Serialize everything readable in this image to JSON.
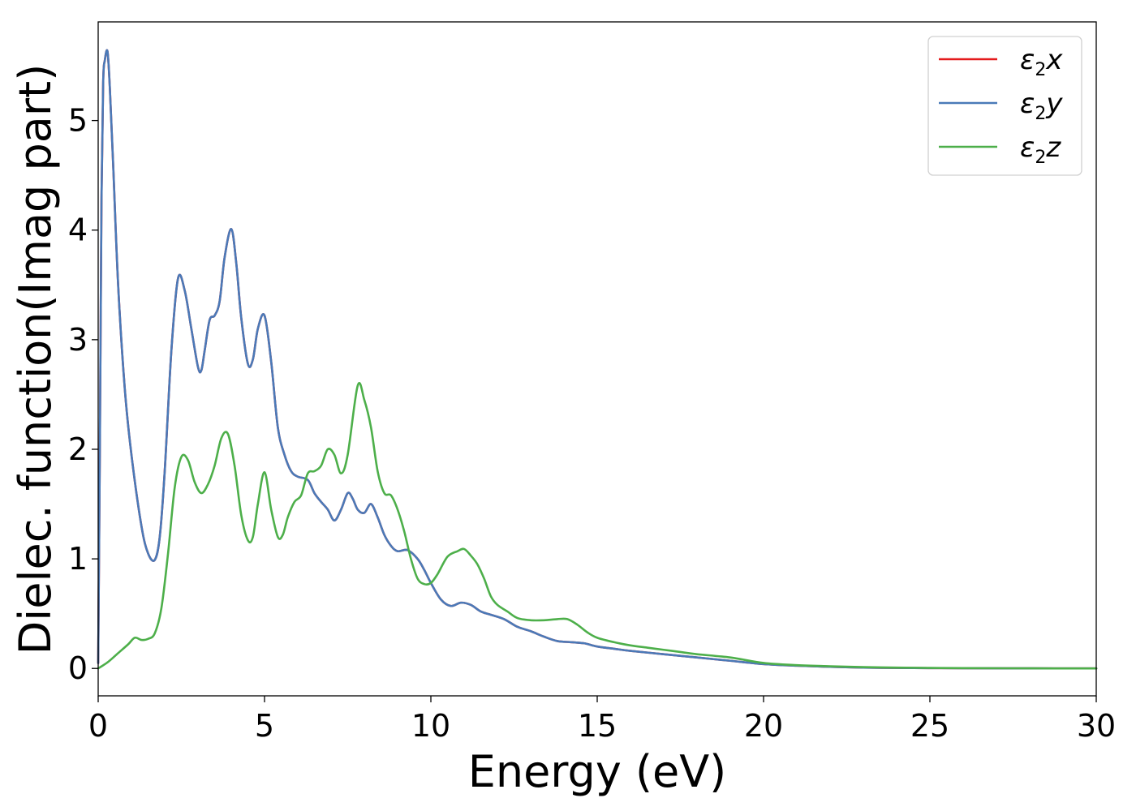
{
  "chart_data": {
    "type": "line",
    "title": "",
    "xlabel": "Energy (eV)",
    "ylabel": "Dielec. function(Imag part)",
    "xlim": [
      0,
      30
    ],
    "ylim": [
      -0.25,
      5.9
    ],
    "xticks": [
      0,
      5,
      10,
      15,
      20,
      25,
      30
    ],
    "yticks": [
      0,
      1,
      2,
      3,
      4,
      5
    ],
    "grid": false,
    "legend_position": "top-right",
    "series": [
      {
        "name": "ε2x",
        "symbol": "ε",
        "sub": "2",
        "axis": "x",
        "color": "#e41a1c",
        "x": [
          0,
          0.05,
          0.1,
          0.15,
          0.2,
          0.28,
          0.35,
          0.45,
          0.6,
          0.8,
          1.0,
          1.3,
          1.5,
          1.7,
          1.85,
          2.0,
          2.2,
          2.4,
          2.6,
          2.8,
          3.0,
          3.1,
          3.2,
          3.35,
          3.5,
          3.65,
          3.8,
          4.0,
          4.15,
          4.3,
          4.5,
          4.65,
          4.8,
          5.0,
          5.2,
          5.4,
          5.6,
          5.8,
          6.0,
          6.3,
          6.5,
          6.7,
          6.9,
          7.1,
          7.3,
          7.5,
          7.65,
          7.8,
          8.0,
          8.2,
          8.4,
          8.6,
          8.8,
          9.0,
          9.3,
          9.6,
          9.8,
          10.0,
          10.3,
          10.6,
          10.9,
          11.2,
          11.5,
          11.8,
          12.2,
          12.6,
          13.0,
          13.4,
          13.8,
          14.2,
          14.6,
          15.0,
          15.5,
          16.0,
          17.0,
          18.0,
          19.0,
          20.0,
          21.0,
          22.0,
          23.0,
          24.0,
          25.0,
          26.0,
          28.0,
          30.0
        ],
        "y": [
          0.05,
          2.0,
          4.3,
          5.35,
          5.55,
          5.63,
          5.3,
          4.6,
          3.5,
          2.55,
          1.95,
          1.3,
          1.05,
          0.99,
          1.2,
          1.8,
          2.9,
          3.56,
          3.45,
          3.1,
          2.75,
          2.72,
          2.9,
          3.18,
          3.22,
          3.35,
          3.75,
          4.01,
          3.7,
          3.2,
          2.78,
          2.82,
          3.1,
          3.22,
          2.8,
          2.2,
          1.95,
          1.8,
          1.75,
          1.72,
          1.6,
          1.52,
          1.45,
          1.35,
          1.45,
          1.6,
          1.55,
          1.45,
          1.42,
          1.5,
          1.38,
          1.22,
          1.12,
          1.07,
          1.08,
          1.0,
          0.9,
          0.78,
          0.63,
          0.57,
          0.6,
          0.58,
          0.52,
          0.49,
          0.45,
          0.38,
          0.34,
          0.29,
          0.25,
          0.24,
          0.23,
          0.2,
          0.18,
          0.16,
          0.13,
          0.1,
          0.07,
          0.04,
          0.025,
          0.015,
          0.008,
          0.005,
          0.003,
          0.002,
          0.001,
          0.0
        ]
      },
      {
        "name": "ε2y",
        "symbol": "ε",
        "sub": "2",
        "axis": "y",
        "color": "#4a7ab8",
        "x": [
          0,
          0.05,
          0.1,
          0.15,
          0.2,
          0.28,
          0.35,
          0.45,
          0.6,
          0.8,
          1.0,
          1.3,
          1.5,
          1.7,
          1.85,
          2.0,
          2.2,
          2.4,
          2.6,
          2.8,
          3.0,
          3.1,
          3.2,
          3.35,
          3.5,
          3.65,
          3.8,
          4.0,
          4.15,
          4.3,
          4.5,
          4.65,
          4.8,
          5.0,
          5.2,
          5.4,
          5.6,
          5.8,
          6.0,
          6.3,
          6.5,
          6.7,
          6.9,
          7.1,
          7.3,
          7.5,
          7.65,
          7.8,
          8.0,
          8.2,
          8.4,
          8.6,
          8.8,
          9.0,
          9.3,
          9.6,
          9.8,
          10.0,
          10.3,
          10.6,
          10.9,
          11.2,
          11.5,
          11.8,
          12.2,
          12.6,
          13.0,
          13.4,
          13.8,
          14.2,
          14.6,
          15.0,
          15.5,
          16.0,
          17.0,
          18.0,
          19.0,
          20.0,
          21.0,
          22.0,
          23.0,
          24.0,
          25.0,
          26.0,
          28.0,
          30.0
        ],
        "y": [
          0.05,
          2.0,
          4.3,
          5.35,
          5.55,
          5.63,
          5.3,
          4.6,
          3.5,
          2.55,
          1.95,
          1.3,
          1.05,
          0.99,
          1.2,
          1.8,
          2.9,
          3.56,
          3.45,
          3.1,
          2.75,
          2.72,
          2.9,
          3.18,
          3.22,
          3.35,
          3.75,
          4.01,
          3.7,
          3.2,
          2.78,
          2.82,
          3.1,
          3.22,
          2.8,
          2.2,
          1.95,
          1.8,
          1.75,
          1.72,
          1.6,
          1.52,
          1.45,
          1.35,
          1.45,
          1.6,
          1.55,
          1.45,
          1.42,
          1.5,
          1.38,
          1.22,
          1.12,
          1.07,
          1.08,
          1.0,
          0.9,
          0.78,
          0.63,
          0.57,
          0.6,
          0.58,
          0.52,
          0.49,
          0.45,
          0.38,
          0.34,
          0.29,
          0.25,
          0.24,
          0.23,
          0.2,
          0.18,
          0.16,
          0.13,
          0.1,
          0.07,
          0.04,
          0.025,
          0.015,
          0.008,
          0.005,
          0.003,
          0.002,
          0.001,
          0.0
        ]
      },
      {
        "name": "ε2z",
        "symbol": "ε",
        "sub": "2",
        "axis": "z",
        "color": "#4daf4a",
        "x": [
          0,
          0.3,
          0.6,
          0.9,
          1.1,
          1.3,
          1.5,
          1.7,
          1.9,
          2.1,
          2.3,
          2.5,
          2.7,
          2.9,
          3.1,
          3.3,
          3.5,
          3.7,
          3.9,
          4.1,
          4.3,
          4.5,
          4.65,
          4.8,
          5.0,
          5.2,
          5.4,
          5.55,
          5.7,
          5.9,
          6.1,
          6.3,
          6.5,
          6.7,
          6.9,
          7.1,
          7.3,
          7.5,
          7.8,
          8.0,
          8.2,
          8.4,
          8.6,
          8.8,
          9.0,
          9.2,
          9.4,
          9.6,
          9.8,
          10.0,
          10.2,
          10.5,
          10.8,
          11.0,
          11.2,
          11.4,
          11.6,
          11.8,
          12.0,
          12.3,
          12.6,
          13.0,
          13.4,
          13.8,
          14.1,
          14.4,
          14.7,
          15.0,
          15.5,
          16.0,
          16.5,
          17.0,
          17.5,
          18.0,
          19.0,
          20.0,
          21.0,
          22.0,
          23.0,
          24.0,
          25.0,
          26.0,
          28.0,
          30.0
        ],
        "y": [
          0.0,
          0.06,
          0.14,
          0.22,
          0.28,
          0.26,
          0.27,
          0.32,
          0.55,
          1.05,
          1.65,
          1.93,
          1.9,
          1.7,
          1.6,
          1.68,
          1.85,
          2.1,
          2.14,
          1.85,
          1.4,
          1.17,
          1.2,
          1.5,
          1.79,
          1.45,
          1.2,
          1.22,
          1.38,
          1.52,
          1.58,
          1.78,
          1.8,
          1.85,
          2.0,
          1.95,
          1.78,
          1.95,
          2.58,
          2.45,
          2.2,
          1.8,
          1.6,
          1.58,
          1.45,
          1.25,
          1.0,
          0.82,
          0.77,
          0.78,
          0.86,
          1.02,
          1.07,
          1.09,
          1.03,
          0.95,
          0.82,
          0.66,
          0.58,
          0.52,
          0.46,
          0.44,
          0.44,
          0.45,
          0.45,
          0.4,
          0.33,
          0.28,
          0.24,
          0.21,
          0.19,
          0.17,
          0.15,
          0.13,
          0.1,
          0.05,
          0.03,
          0.02,
          0.012,
          0.008,
          0.005,
          0.003,
          0.001,
          0.0
        ]
      }
    ]
  }
}
